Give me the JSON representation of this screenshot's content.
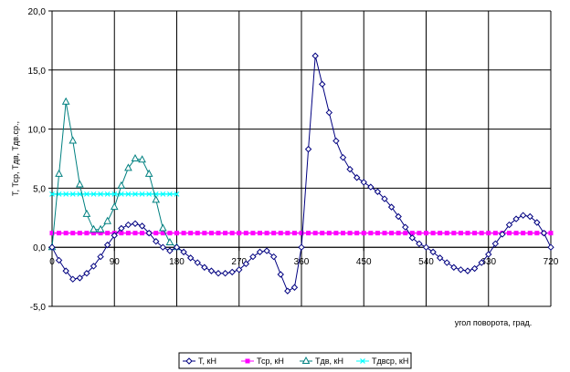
{
  "chart_data": {
    "type": "line",
    "ylabel": "Т, Тср, Тдв, Тдв.ср.,",
    "xlabel": "угол поворота, град.",
    "xlim": [
      0,
      720
    ],
    "ylim": [
      -5,
      20
    ],
    "x_ticks": [
      "0",
      "90",
      "180",
      "270",
      "360",
      "450",
      "540",
      "630",
      "720"
    ],
    "y_ticks": [
      "-5,0",
      "0,0",
      "5,0",
      "10,0",
      "15,0",
      "20,0"
    ],
    "grid": true,
    "legend_position": "bottom",
    "colors": {
      "T": "#000080",
      "Tcp": "#ff00ff",
      "Tdv": "#008080",
      "Tdvcp": "#00ffff"
    },
    "series": [
      {
        "name": "Т, кН",
        "color": "#000080",
        "marker": "diamond",
        "x": [
          0,
          10,
          20,
          30,
          40,
          50,
          60,
          70,
          80,
          90,
          100,
          110,
          120,
          130,
          140,
          150,
          160,
          170,
          180,
          190,
          200,
          210,
          220,
          230,
          240,
          250,
          260,
          270,
          280,
          290,
          300,
          310,
          320,
          330,
          340,
          350,
          360,
          370,
          380,
          390,
          400,
          410,
          420,
          430,
          440,
          450,
          460,
          470,
          480,
          490,
          500,
          510,
          520,
          530,
          540,
          550,
          560,
          570,
          580,
          590,
          600,
          610,
          620,
          630,
          640,
          650,
          660,
          670,
          680,
          690,
          700,
          710,
          720
        ],
        "y": [
          0.0,
          -1.1,
          -2.0,
          -2.7,
          -2.6,
          -2.2,
          -1.6,
          -0.8,
          0.2,
          1.0,
          1.6,
          1.9,
          2.0,
          1.8,
          1.2,
          0.5,
          0.0,
          -0.3,
          0.0,
          -0.4,
          -0.9,
          -1.3,
          -1.7,
          -2.0,
          -2.2,
          -2.2,
          -2.1,
          -1.9,
          -1.4,
          -0.8,
          -0.4,
          -0.3,
          -0.8,
          -2.3,
          -3.7,
          -3.4,
          0.0,
          8.3,
          16.2,
          13.8,
          11.4,
          9.0,
          7.6,
          6.6,
          5.9,
          5.5,
          5.1,
          4.7,
          4.1,
          3.4,
          2.6,
          1.7,
          0.8,
          0.3,
          0.0,
          -0.4,
          -0.9,
          -1.3,
          -1.7,
          -1.9,
          -2.0,
          -1.8,
          -1.3,
          -0.6,
          0.3,
          1.1,
          1.9,
          2.4,
          2.7,
          2.6,
          2.1,
          1.2,
          0.0
        ]
      },
      {
        "name": "Тср, кН",
        "color": "#ff00ff",
        "marker": "square",
        "x": [
          0,
          10,
          20,
          30,
          40,
          50,
          60,
          70,
          80,
          90,
          100,
          110,
          120,
          130,
          140,
          150,
          160,
          170,
          180,
          190,
          200,
          210,
          220,
          230,
          240,
          250,
          260,
          270,
          280,
          290,
          300,
          310,
          320,
          330,
          340,
          350,
          360,
          370,
          380,
          390,
          400,
          410,
          420,
          430,
          440,
          450,
          460,
          470,
          480,
          490,
          500,
          510,
          520,
          530,
          540,
          550,
          560,
          570,
          580,
          590,
          600,
          610,
          620,
          630,
          640,
          650,
          660,
          670,
          680,
          690,
          700,
          710,
          720
        ],
        "y": [
          1.2,
          1.2,
          1.2,
          1.2,
          1.2,
          1.2,
          1.2,
          1.2,
          1.2,
          1.2,
          1.2,
          1.2,
          1.2,
          1.2,
          1.2,
          1.2,
          1.2,
          1.2,
          1.2,
          1.2,
          1.2,
          1.2,
          1.2,
          1.2,
          1.2,
          1.2,
          1.2,
          1.2,
          1.2,
          1.2,
          1.2,
          1.2,
          1.2,
          1.2,
          1.2,
          1.2,
          1.2,
          1.2,
          1.2,
          1.2,
          1.2,
          1.2,
          1.2,
          1.2,
          1.2,
          1.2,
          1.2,
          1.2,
          1.2,
          1.2,
          1.2,
          1.2,
          1.2,
          1.2,
          1.2,
          1.2,
          1.2,
          1.2,
          1.2,
          1.2,
          1.2,
          1.2,
          1.2,
          1.2,
          1.2,
          1.2,
          1.2,
          1.2,
          1.2,
          1.2,
          1.2,
          1.2,
          1.2
        ]
      },
      {
        "name": "Тдв, кН",
        "color": "#008080",
        "marker": "triangle",
        "x": [
          0,
          10,
          20,
          30,
          40,
          50,
          60,
          70,
          80,
          90,
          100,
          110,
          120,
          130,
          140,
          150,
          160,
          170,
          180
        ],
        "y": [
          0.0,
          6.2,
          12.3,
          9.0,
          5.3,
          2.8,
          1.5,
          1.5,
          2.2,
          3.4,
          5.2,
          6.7,
          7.5,
          7.4,
          6.2,
          4.0,
          1.6,
          0.4,
          0.0
        ]
      },
      {
        "name": "Тдвср, кН",
        "color": "#00ffff",
        "marker": "x",
        "x": [
          0,
          10,
          20,
          30,
          40,
          50,
          60,
          70,
          80,
          90,
          100,
          110,
          120,
          130,
          140,
          150,
          160,
          170,
          180
        ],
        "y": [
          4.5,
          4.5,
          4.5,
          4.5,
          4.5,
          4.5,
          4.5,
          4.5,
          4.5,
          4.5,
          4.5,
          4.5,
          4.5,
          4.5,
          4.5,
          4.5,
          4.5,
          4.5,
          4.5
        ]
      }
    ]
  }
}
